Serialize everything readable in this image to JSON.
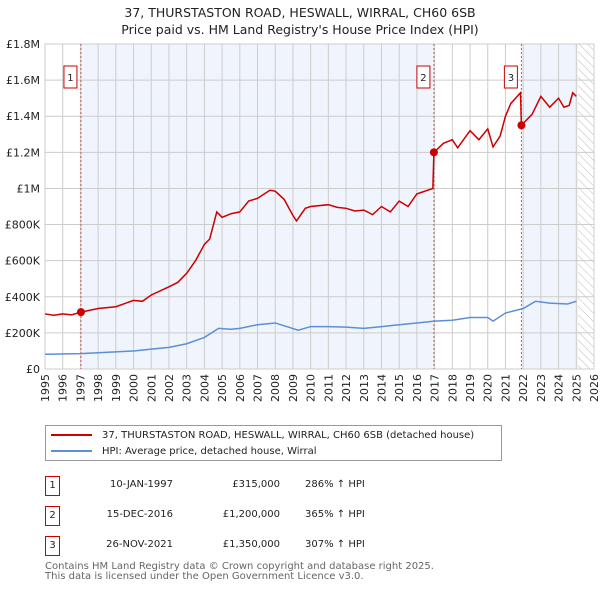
{
  "chart_data": {
    "type": "line",
    "title": "37, THURSTASTON ROAD, HESWALL, WIRRAL, CH60 6SB",
    "subtitle": "Price paid vs. HM Land Registry's House Price Index (HPI)",
    "xlim": [
      1995,
      2026
    ],
    "ylim": [
      0,
      1800000
    ],
    "x_ticks": [
      "1995",
      "1996",
      "1997",
      "1998",
      "1999",
      "2000",
      "2001",
      "2002",
      "2003",
      "2004",
      "2005",
      "2006",
      "2007",
      "2008",
      "2009",
      "2010",
      "2011",
      "2012",
      "2013",
      "2014",
      "2015",
      "2016",
      "2017",
      "2018",
      "2019",
      "2020",
      "2021",
      "2022",
      "2023",
      "2024",
      "2025",
      "2026"
    ],
    "y_ticks": [
      {
        "v": 0,
        "label": "£0"
      },
      {
        "v": 200000,
        "label": "£200K"
      },
      {
        "v": 400000,
        "label": "£400K"
      },
      {
        "v": 600000,
        "label": "£600K"
      },
      {
        "v": 800000,
        "label": "£800K"
      },
      {
        "v": 1000000,
        "label": "£1M"
      },
      {
        "v": 1200000,
        "label": "£1.2M"
      },
      {
        "v": 1400000,
        "label": "£1.4M"
      },
      {
        "v": 1600000,
        "label": "£1.6M"
      },
      {
        "v": 1800000,
        "label": "£1.8M"
      }
    ],
    "grid": true,
    "series": [
      {
        "name": "37, THURSTASTON ROAD, HESWALL, WIRRAL, CH60 6SB (detached house)",
        "color": "#cc0000",
        "x": [
          1995,
          1995.5,
          1996,
          1996.5,
          1997.03,
          1998,
          1999,
          2000,
          2000.5,
          2001,
          2002,
          2002.5,
          2003,
          2003.5,
          2004,
          2004.3,
          2004.7,
          2005,
          2005.5,
          2006,
          2006.5,
          2007,
          2007.7,
          2008,
          2008.5,
          2009,
          2009.2,
          2009.7,
          2010,
          2011,
          2011.5,
          2012,
          2012.5,
          2013,
          2013.5,
          2014,
          2014.5,
          2015,
          2015.5,
          2016,
          2016.9,
          2016.96,
          2017.5,
          2018,
          2018.3,
          2019,
          2019.5,
          2020,
          2020.3,
          2020.7,
          2021,
          2021.3,
          2021.85,
          2021.9,
          2022.5,
          2023,
          2023.5,
          2024,
          2024.3,
          2024.6,
          2024.8,
          2025
        ],
        "y": [
          305000,
          298000,
          305000,
          300000,
          315000,
          335000,
          345000,
          380000,
          375000,
          410000,
          455000,
          480000,
          530000,
          600000,
          690000,
          720000,
          870000,
          840000,
          860000,
          870000,
          930000,
          945000,
          990000,
          985000,
          940000,
          850000,
          820000,
          890000,
          900000,
          910000,
          895000,
          890000,
          875000,
          880000,
          855000,
          900000,
          870000,
          930000,
          900000,
          970000,
          1000000,
          1200000,
          1250000,
          1270000,
          1225000,
          1320000,
          1270000,
          1330000,
          1230000,
          1290000,
          1400000,
          1470000,
          1530000,
          1350000,
          1410000,
          1510000,
          1450000,
          1500000,
          1450000,
          1460000,
          1530000,
          1510000
        ]
      },
      {
        "name": "HPI: Average price, detached house, Wirral",
        "color": "#5b8fd6",
        "x": [
          1995,
          1997,
          1998,
          2000,
          2001,
          2002,
          2003,
          2004,
          2004.8,
          2005.5,
          2006,
          2007,
          2008,
          2009.3,
          2010,
          2011,
          2012,
          2013,
          2014,
          2015,
          2016,
          2017,
          2018,
          2019,
          2020,
          2020.3,
          2021,
          2022,
          2022.7,
          2023.5,
          2024.5,
          2025
        ],
        "y": [
          82000,
          85000,
          90000,
          100000,
          110000,
          120000,
          140000,
          175000,
          225000,
          220000,
          225000,
          245000,
          255000,
          215000,
          235000,
          235000,
          232000,
          225000,
          235000,
          245000,
          255000,
          265000,
          270000,
          285000,
          285000,
          265000,
          310000,
          335000,
          375000,
          365000,
          360000,
          375000
        ]
      }
    ],
    "sales": [
      {
        "n": "1",
        "x": 1997.03,
        "y": 315000,
        "date": "10-JAN-1997",
        "price": "£315,000",
        "hpi": "286% ↑ HPI"
      },
      {
        "n": "2",
        "x": 2016.96,
        "y": 1200000,
        "date": "15-DEC-2016",
        "price": "£1,200,000",
        "hpi": "365% ↑ HPI"
      },
      {
        "n": "3",
        "x": 2021.9,
        "y": 1350000,
        "date": "26-NOV-2021",
        "price": "£1,350,000",
        "hpi": "307% ↑ HPI"
      }
    ],
    "forecast_start": 2025.1,
    "legend": "bottom"
  },
  "footer": {
    "line1": "Contains HM Land Registry data © Crown copyright and database right 2025.",
    "line2": "This data is licensed under the Open Government Licence v3.0."
  }
}
